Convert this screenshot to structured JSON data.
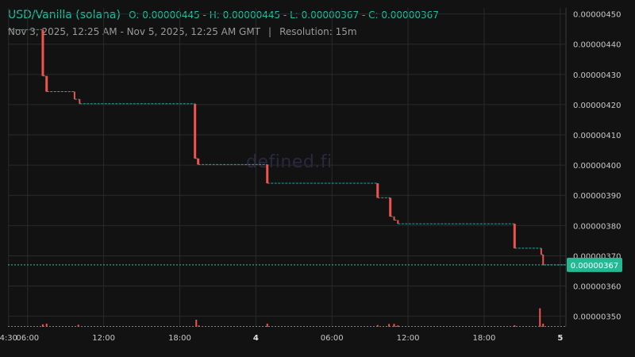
{
  "header": {
    "pair": "USD/Vanilla (solana)",
    "ohlc": "O: 0.00000445 - H: 0.00000445 - L: 0.00000367 - C: 0.00000367",
    "range": "Nov 3, 2025, 12:25 AM - Nov 5, 2025, 12:25 AM GMT",
    "separator": "|",
    "resolution": "Resolution: 15m"
  },
  "watermark": "defined.fi",
  "colors": {
    "up": "#26a69a",
    "down": "#ef5350",
    "accent": "#25c2a0",
    "grid": "#2a2a2a",
    "bg": "#121212"
  },
  "chart_data": {
    "type": "candlestick",
    "x_ticks": [
      "4:30",
      "06:00",
      "12:00",
      "18:00",
      "4",
      "06:00",
      "12:00",
      "18:00",
      "5"
    ],
    "x_tick_bold": [
      "4",
      "5"
    ],
    "x_tick_hours": [
      4.5,
      6,
      12,
      18,
      24,
      30,
      36,
      42,
      48
    ],
    "x_range_hours": [
      4.45,
      48.45
    ],
    "y_ticks": [
      "0.00000450",
      "0.00000440",
      "0.00000430",
      "0.00000420",
      "0.00000410",
      "0.00000400",
      "0.00000390",
      "0.00000380",
      "0.00000370",
      "0.00000360",
      "0.00000350"
    ],
    "ylim": [
      3.465e-06,
      4.52e-06
    ],
    "last_price": "0.00000367",
    "last_value": 3.67e-06,
    "price_steps": [
      {
        "t": 4.45,
        "p": 4.448e-06
      },
      {
        "t": 7.2,
        "p": 4.295e-06,
        "big": true
      },
      {
        "t": 7.5,
        "p": 4.243e-06,
        "big": true
      },
      {
        "t": 9.7,
        "p": 4.218e-06
      },
      {
        "t": 10.1,
        "p": 4.203e-06
      },
      {
        "t": 19.2,
        "p": 4.022e-06,
        "big": true
      },
      {
        "t": 19.45,
        "p": 4.002e-06,
        "big": true
      },
      {
        "t": 24.9,
        "p": 3.94e-06,
        "big": true
      },
      {
        "t": 33.6,
        "p": 3.892e-06,
        "big": true
      },
      {
        "t": 34.6,
        "p": 3.83e-06,
        "big": true
      },
      {
        "t": 34.9,
        "p": 3.818e-06
      },
      {
        "t": 35.2,
        "p": 3.806e-06
      },
      {
        "t": 44.4,
        "p": 3.725e-06,
        "big": true
      },
      {
        "t": 46.5,
        "p": 3.704e-06
      },
      {
        "t": 46.65,
        "p": 3.67e-06
      }
    ],
    "volume_spikes": [
      {
        "t": 7.2,
        "h": 0.35
      },
      {
        "t": 7.5,
        "h": 0.45
      },
      {
        "t": 10.0,
        "h": 0.3
      },
      {
        "t": 19.3,
        "h": 1.0
      },
      {
        "t": 19.5,
        "h": 0.2
      },
      {
        "t": 24.9,
        "h": 0.45
      },
      {
        "t": 33.6,
        "h": 0.25
      },
      {
        "t": 34.5,
        "h": 0.4
      },
      {
        "t": 34.9,
        "h": 0.42
      },
      {
        "t": 35.2,
        "h": 0.2
      },
      {
        "t": 44.4,
        "h": 0.22
      },
      {
        "t": 46.4,
        "h": 2.6
      },
      {
        "t": 46.65,
        "h": 0.45
      }
    ]
  }
}
